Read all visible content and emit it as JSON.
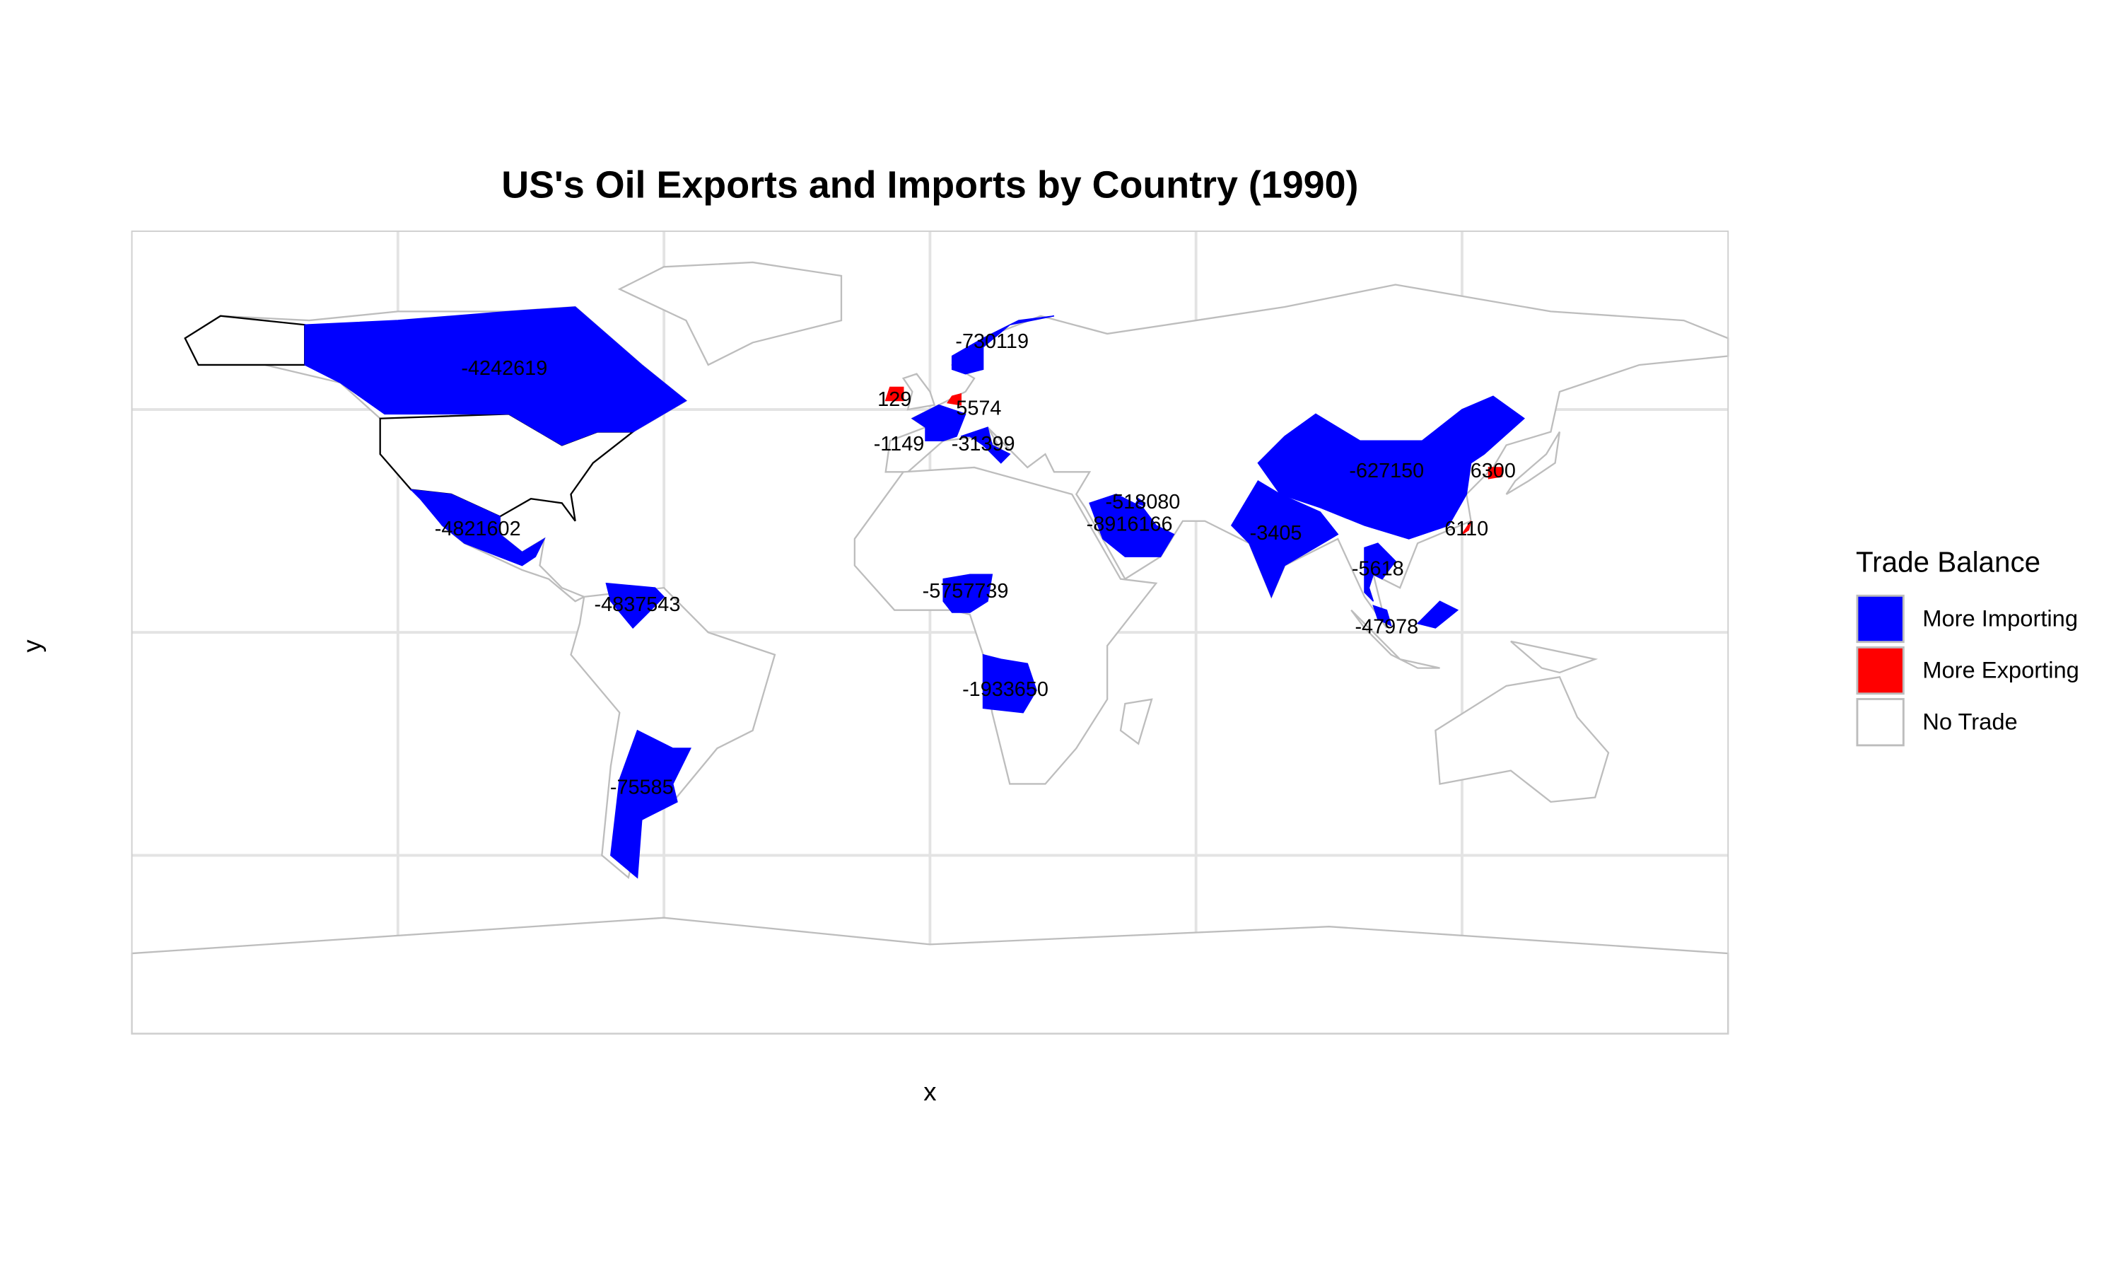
{
  "chart_data": {
    "type": "map",
    "title": "US's Oil Exports and Imports by Country (1990)",
    "x_label": "x",
    "y_label": "y",
    "xlim": [
      -180,
      180
    ],
    "ylim": [
      -90,
      90
    ],
    "xticks": [
      -120,
      -60,
      0,
      60,
      120
    ],
    "yticks": [
      -50,
      0,
      50
    ],
    "grid": true,
    "legend": {
      "title": "Trade Balance",
      "position": "right",
      "entries": [
        {
          "label": "More Importing",
          "color": "#0000ff"
        },
        {
          "label": "More Exporting",
          "color": "#ff0000"
        },
        {
          "label": "No Trade",
          "color": "#ffffff"
        }
      ]
    },
    "values": [
      -4242619,
      -730119,
      129,
      5574,
      -1149,
      -31399,
      -627150,
      6300,
      6110,
      -518080,
      -8916166,
      -3405,
      -5618,
      -47978,
      -4821602,
      -4837543,
      -5757739,
      -1933650,
      -75585
    ]
  }
}
